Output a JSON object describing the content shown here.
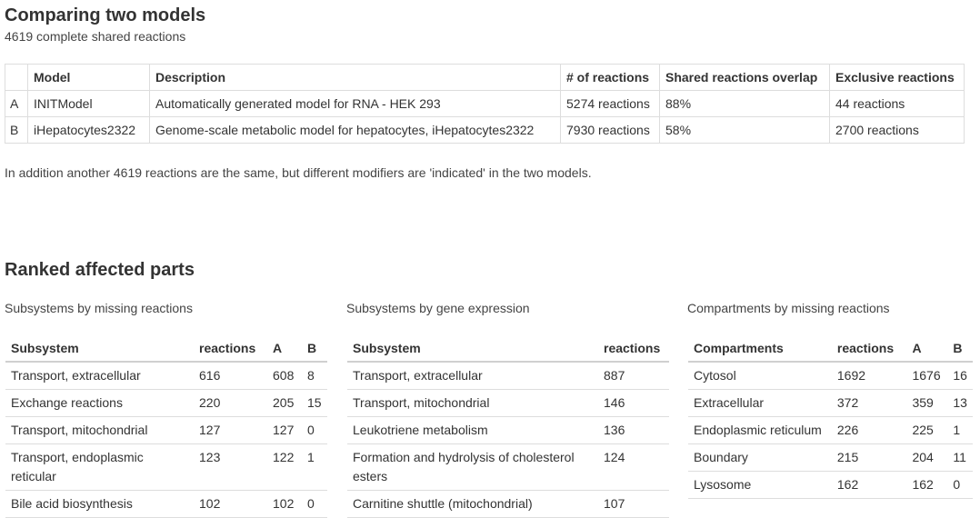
{
  "header": {
    "title": "Comparing two models",
    "subtitle": "4619 complete shared reactions"
  },
  "models_table": {
    "columns": [
      "",
      "Model",
      "Description",
      "# of reactions",
      "Shared reactions overlap",
      "Exclusive reactions"
    ],
    "rows": [
      {
        "letter": "A",
        "model": "INITModel",
        "description": "Automatically generated model for RNA - HEK 293",
        "reactions": "5274 reactions",
        "overlap": "88%",
        "exclusive": "44 reactions"
      },
      {
        "letter": "B",
        "model": "iHepatocytes2322",
        "description": "Genome-scale metabolic model for hepatocytes, iHepatocytes2322",
        "reactions": "7930 reactions",
        "overlap": "58%",
        "exclusive": "2700 reactions"
      }
    ]
  },
  "note": "In addition another 4619 reactions are the same, but different modifiers are 'indicated' in the two models.",
  "ranked": {
    "title": "Ranked affected parts",
    "panels": [
      {
        "title": "Subsystems by missing reactions",
        "columns": [
          "Subsystem",
          "reactions",
          "A",
          "B"
        ],
        "rows": [
          [
            "Transport, extracellular",
            "616",
            "608",
            "8"
          ],
          [
            "Exchange reactions",
            "220",
            "205",
            "15"
          ],
          [
            "Transport, mitochondrial",
            "127",
            "127",
            "0"
          ],
          [
            "Transport, endoplasmic reticular",
            "123",
            "122",
            "1"
          ],
          [
            "Bile acid biosynthesis",
            "102",
            "102",
            "0"
          ]
        ]
      },
      {
        "title": "Subsystems by gene expression",
        "columns": [
          "Subsystem",
          "reactions"
        ],
        "rows": [
          [
            "Transport, extracellular",
            "887"
          ],
          [
            "Transport, mitochondrial",
            "146"
          ],
          [
            "Leukotriene metabolism",
            "136"
          ],
          [
            "Formation and hydrolysis of cholesterol esters",
            "124"
          ],
          [
            "Carnitine shuttle (mitochondrial)",
            "107"
          ]
        ]
      },
      {
        "title": "Compartments by missing reactions",
        "columns": [
          "Compartments",
          "reactions",
          "A",
          "B"
        ],
        "rows": [
          [
            "Cytosol",
            "1692",
            "1676",
            "16"
          ],
          [
            "Extracellular",
            "372",
            "359",
            "13"
          ],
          [
            "Endoplasmic reticulum",
            "226",
            "225",
            "1"
          ],
          [
            "Boundary",
            "215",
            "204",
            "11"
          ],
          [
            "Lysosome",
            "162",
            "162",
            "0"
          ]
        ]
      }
    ]
  }
}
